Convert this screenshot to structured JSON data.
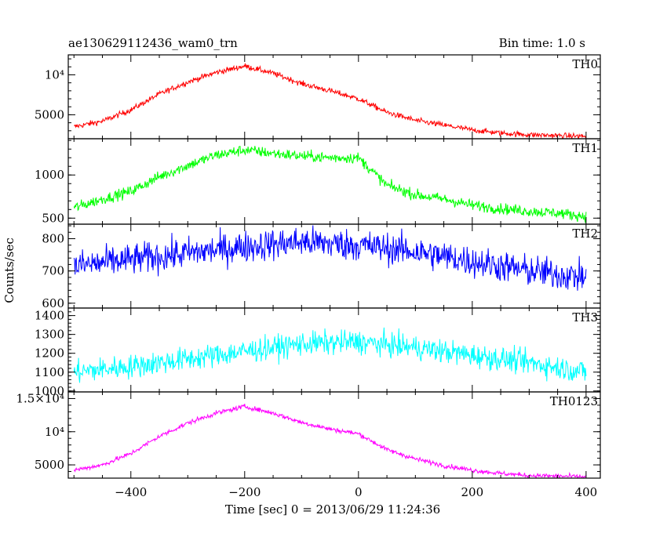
{
  "header": {
    "title": "ae130629112436_wam0_trn",
    "bin_time": "Bin time: 1.0 s"
  },
  "chart_data": {
    "type": "line",
    "title": "ae130629112436_wam0_trn",
    "subtitle": "Bin time: 1.0 s",
    "xlabel": "Time [sec] 0 = 2013/06/29 11:24:36",
    "ylabel": "Counts/sec",
    "xlim": [
      -510,
      425
    ],
    "x_ticks": [
      -400,
      -200,
      0,
      200,
      400
    ],
    "x_tick_labels": [
      "−400",
      "−200",
      "0",
      "200",
      "400"
    ],
    "grid": false,
    "panels": [
      {
        "name": "TH0",
        "color": "#ff0000",
        "ylim": [
          2000,
          12500
        ],
        "y_ticks": [
          5000,
          10000
        ],
        "y_tick_labels": [
          "5000",
          "10⁴"
        ],
        "noise": 250,
        "x": [
          -500,
          -450,
          -400,
          -350,
          -300,
          -250,
          -200,
          -150,
          -100,
          -50,
          0,
          50,
          100,
          150,
          200,
          250,
          300,
          350,
          400
        ],
        "values": [
          3500,
          4200,
          5600,
          7600,
          9100,
          10300,
          11100,
          10200,
          8900,
          8000,
          7000,
          5300,
          4300,
          3700,
          3100,
          2700,
          2500,
          2400,
          2300
        ]
      },
      {
        "name": "TH1",
        "color": "#00ff00",
        "ylim": [
          430,
          1420
        ],
        "y_ticks": [
          500,
          1000
        ],
        "y_tick_labels": [
          "500",
          "1000"
        ],
        "noise": 45,
        "x": [
          -500,
          -450,
          -400,
          -350,
          -300,
          -250,
          -200,
          -150,
          -100,
          -50,
          0,
          50,
          100,
          150,
          200,
          250,
          300,
          350,
          400
        ],
        "values": [
          620,
          720,
          810,
          980,
          1110,
          1230,
          1290,
          1250,
          1220,
          1200,
          1200,
          880,
          770,
          720,
          650,
          610,
          580,
          560,
          520
        ]
      },
      {
        "name": "TH2",
        "color": "#0000ff",
        "ylim": [
          585,
          845
        ],
        "y_ticks": [
          600,
          700,
          800
        ],
        "y_tick_labels": [
          "600",
          "700",
          "800"
        ],
        "noise": 35,
        "x": [
          -500,
          -400,
          -300,
          -200,
          -100,
          0,
          100,
          200,
          300,
          400
        ],
        "values": [
          715,
          735,
          755,
          775,
          790,
          780,
          760,
          730,
          700,
          680
        ]
      },
      {
        "name": "TH3",
        "color": "#00ffff",
        "ylim": [
          995,
          1440
        ],
        "y_ticks": [
          1000,
          1100,
          1200,
          1300,
          1400
        ],
        "y_tick_labels": [
          "1000",
          "1100",
          "1200",
          "1300",
          "1400"
        ],
        "noise": 45,
        "x": [
          -500,
          -400,
          -300,
          -200,
          -100,
          0,
          100,
          200,
          300,
          400
        ],
        "values": [
          1100,
          1130,
          1170,
          1210,
          1250,
          1260,
          1230,
          1190,
          1150,
          1100
        ]
      },
      {
        "name": "TH0123",
        "color": "#ff00ff",
        "ylim": [
          3000,
          16000
        ],
        "y_ticks": [
          5000,
          10000,
          15000
        ],
        "y_tick_labels": [
          "5000",
          "10⁴",
          "1.5×10⁴"
        ],
        "noise": 250,
        "x": [
          -500,
          -450,
          -400,
          -350,
          -300,
          -250,
          -200,
          -150,
          -100,
          -50,
          0,
          50,
          100,
          150,
          200,
          250,
          300,
          350,
          400
        ],
        "values": [
          4200,
          5000,
          6700,
          9300,
          11300,
          12800,
          13800,
          12800,
          11400,
          10400,
          9700,
          7300,
          5900,
          4900,
          4200,
          3700,
          3400,
          3300,
          3200
        ]
      }
    ]
  }
}
